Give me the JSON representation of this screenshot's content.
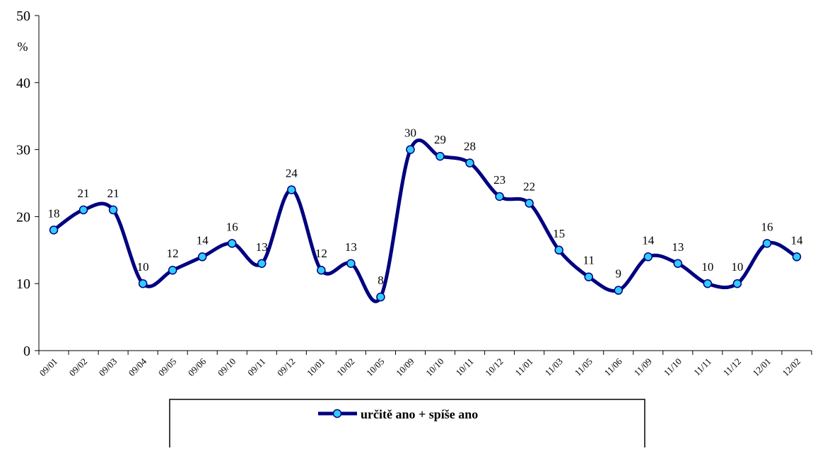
{
  "chart_data": {
    "type": "line",
    "y_label": "%",
    "categories": [
      "09/01",
      "09/02",
      "09/03",
      "09/04",
      "09/05",
      "09/06",
      "09/10",
      "09/11",
      "09/12",
      "10/01",
      "10/02",
      "10/05",
      "10/09",
      "10/10",
      "10/11",
      "10/12",
      "11/01",
      "11/03",
      "11/05",
      "11/06",
      "11/09",
      "11/10",
      "11/11",
      "11/12",
      "12/01",
      "12/02"
    ],
    "series": [
      {
        "name": "určitě ano + spíše ano",
        "color": "#000080",
        "marker_color": "#33ccff",
        "values": [
          18,
          21,
          21,
          10,
          12,
          14,
          16,
          13,
          24,
          12,
          13,
          8,
          30,
          29,
          28,
          23,
          22,
          15,
          11,
          9,
          14,
          13,
          10,
          10,
          16,
          14
        ]
      }
    ],
    "ylim": [
      0,
      50
    ],
    "yticks": [
      0,
      10,
      20,
      30,
      40,
      50
    ],
    "grid": false,
    "legend": "bottom"
  }
}
